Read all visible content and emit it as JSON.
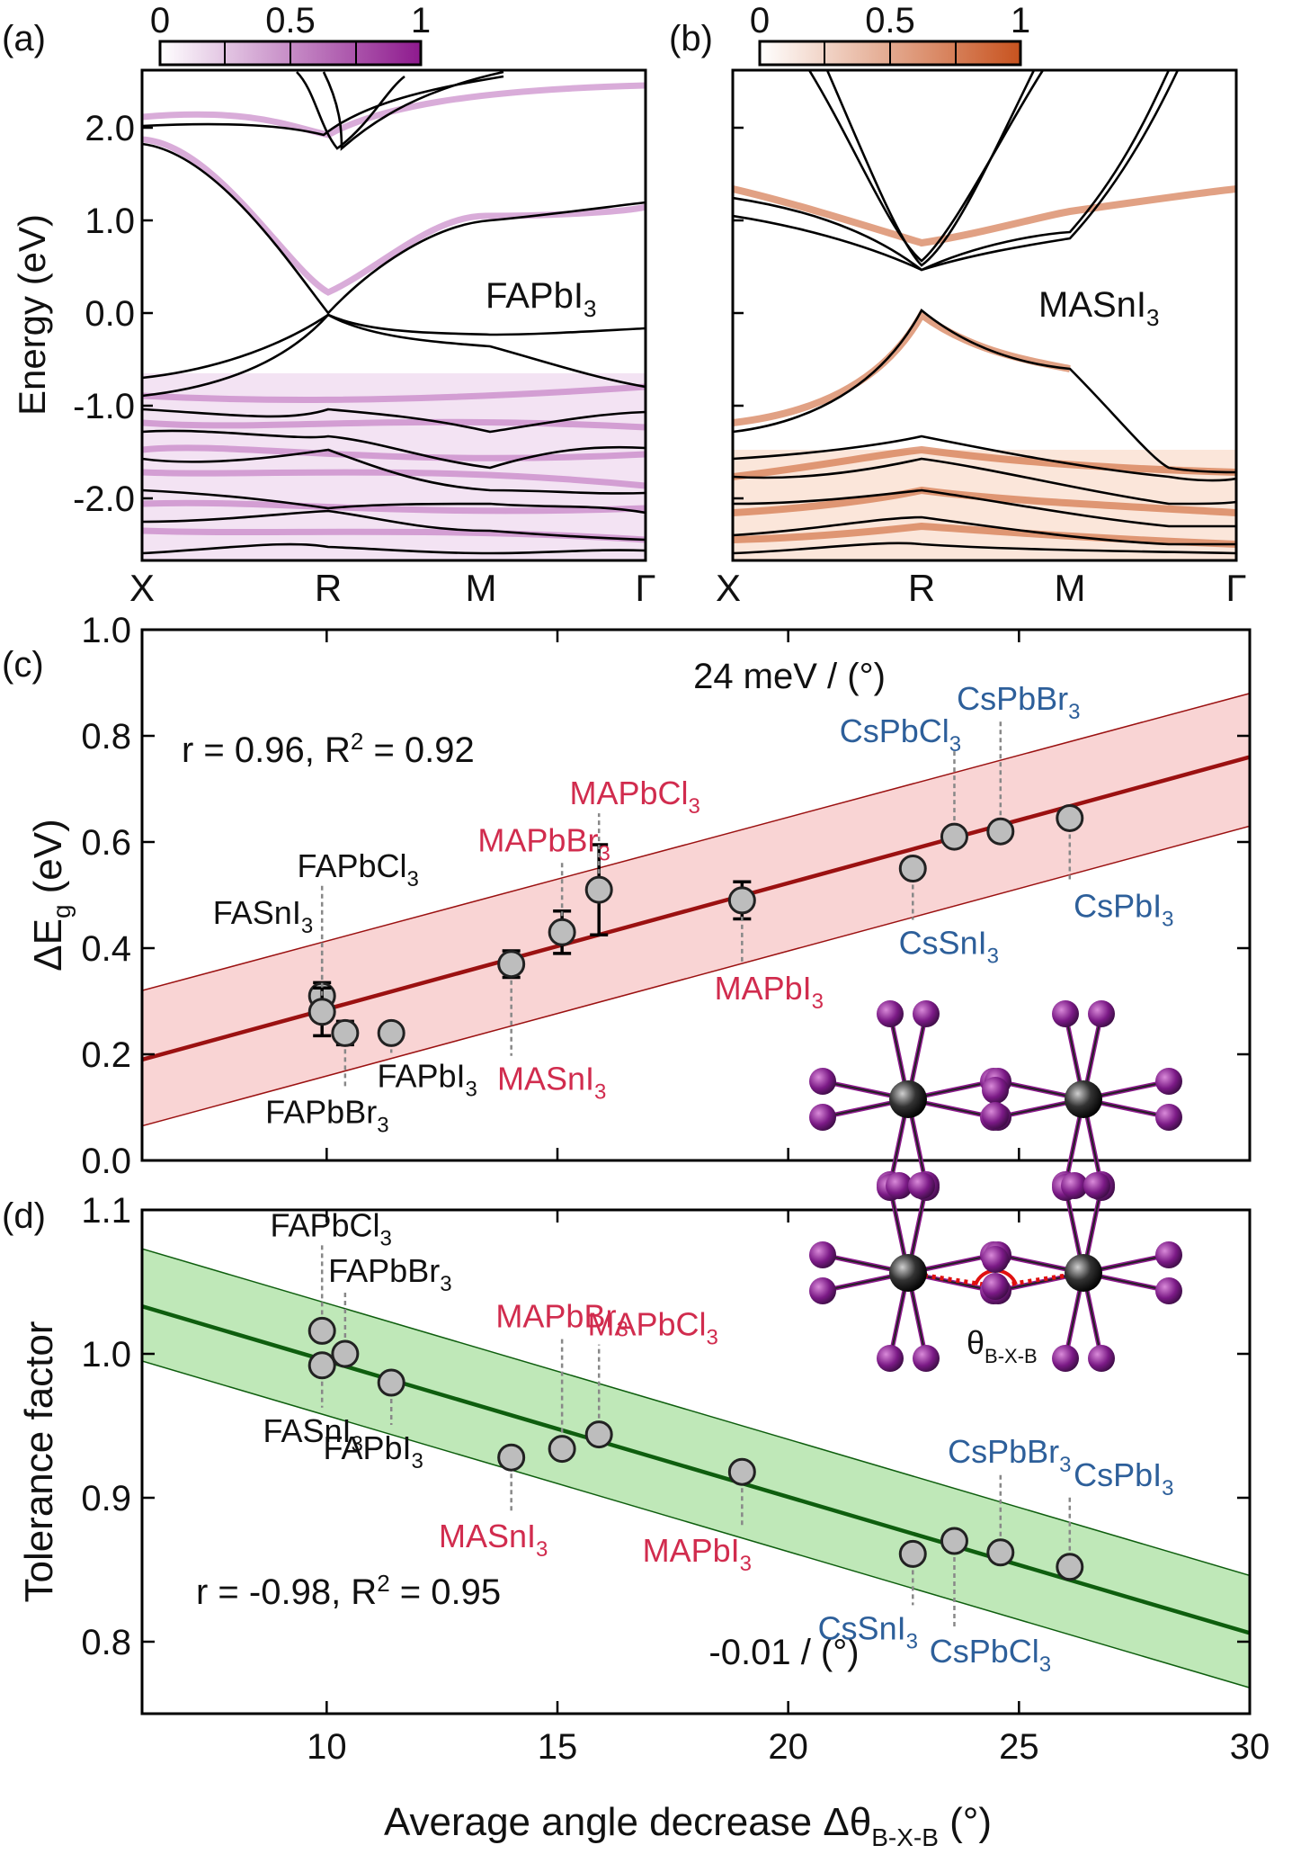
{
  "colors": {
    "purple": "#8e1a8e",
    "purple_light": "#f3e3f3",
    "orange": "#c8531f",
    "orange_light": "#fbe6da",
    "red_line": "#9b1111",
    "red_band": "#f9d4d4",
    "green_line": "#0e5e0e",
    "green_band": "#bfe8b8",
    "black_label": "#111111",
    "fa_label": "#111111",
    "ma_label": "#d12c4e",
    "cs_label": "#2d5f9a",
    "marker_fill": "#bdbdbd"
  },
  "panels": {
    "a": {
      "tag": "(a)",
      "colorbar_ticks": [
        "0",
        "0.5",
        "1"
      ],
      "material": "FAPbI",
      "material_sub": "3",
      "ylabel": "Energy (eV)",
      "yticks": [
        "2.0",
        "1.0",
        "0.0",
        "-1.0",
        "-2.0"
      ],
      "kpoints": [
        "X",
        "R",
        "M",
        "Γ"
      ]
    },
    "b": {
      "tag": "(b)",
      "colorbar_ticks": [
        "0",
        "0.5",
        "1"
      ],
      "material": "MASnI",
      "material_sub": "3",
      "kpoints": [
        "X",
        "R",
        "M",
        "Γ"
      ]
    },
    "inset": {
      "angle_symbol": "θ",
      "angle_sub": "B-X-B"
    }
  },
  "chart_data": [
    {
      "panel": "(c)",
      "type": "scatter",
      "ylabel_main": "ΔE",
      "ylabel_sub": "g",
      "ylabel_unit": "(eV)",
      "ylim": [
        0.0,
        1.0
      ],
      "xlim": [
        6,
        30
      ],
      "yticks": [
        "0.0",
        "0.2",
        "0.4",
        "0.6",
        "0.8",
        "1.0"
      ],
      "slope_label": "24 meV / (°)",
      "stats_label_a": "r = 0.96, R",
      "stats_label_sup": "2",
      "stats_label_b": " = 0.92",
      "fit_line": {
        "x": [
          6,
          30
        ],
        "y": [
          0.19,
          0.76
        ]
      },
      "band": {
        "upper": [
          0.32,
          0.88
        ],
        "lower": [
          0.065,
          0.63
        ]
      },
      "points": [
        {
          "name": "FASnI",
          "sub": "3",
          "group": "fa",
          "x": 9.9,
          "y": 0.31,
          "err": 0.025
        },
        {
          "name": "FAPbCl",
          "sub": "3",
          "group": "fa",
          "x": 9.9,
          "y": 0.28,
          "err": 0.045
        },
        {
          "name": "FAPbBr",
          "sub": "3",
          "group": "fa",
          "x": 10.4,
          "y": 0.24,
          "err": 0.022
        },
        {
          "name": "FAPbI",
          "sub": "3",
          "group": "fa",
          "x": 11.4,
          "y": 0.24,
          "err": 0.015
        },
        {
          "name": "MASnI",
          "sub": "3",
          "group": "ma",
          "x": 14.0,
          "y": 0.37,
          "err": 0.025
        },
        {
          "name": "MAPbBr",
          "sub": "3",
          "group": "ma",
          "x": 15.1,
          "y": 0.43,
          "err": 0.04
        },
        {
          "name": "MAPbCl",
          "sub": "3",
          "group": "ma",
          "x": 15.9,
          "y": 0.51,
          "err": 0.085
        },
        {
          "name": "MAPbI",
          "sub": "3",
          "group": "ma",
          "x": 19.0,
          "y": 0.49,
          "err": 0.035
        },
        {
          "name": "CsSnI",
          "sub": "3",
          "group": "cs",
          "x": 22.7,
          "y": 0.55,
          "err": 0.008
        },
        {
          "name": "CsPbCl",
          "sub": "3",
          "group": "cs",
          "x": 23.6,
          "y": 0.61,
          "err": 0.015
        },
        {
          "name": "CsPbBr",
          "sub": "3",
          "group": "cs",
          "x": 24.6,
          "y": 0.62,
          "err": 0.008
        },
        {
          "name": "CsPbI",
          "sub": "3",
          "group": "cs",
          "x": 26.1,
          "y": 0.645,
          "err": 0.015
        }
      ]
    },
    {
      "panel": "(d)",
      "type": "scatter",
      "ylabel": "Tolerance factor",
      "xlabel_main": "Average angle decrease Δθ",
      "xlabel_sub": "B-X-B",
      "xlabel_unit": " (°)",
      "ylim": [
        0.75,
        1.1
      ],
      "xlim": [
        6,
        30
      ],
      "yticks": [
        "0.8",
        "0.9",
        "1.0",
        "1.1"
      ],
      "xticks": [
        "10",
        "15",
        "20",
        "25",
        "30"
      ],
      "slope_label": "-0.01 / (°)",
      "stats_label_a": "r = -0.98, R",
      "stats_label_sup": "2",
      "stats_label_b": " = 0.95",
      "fit_line": {
        "x": [
          6,
          30
        ],
        "y": [
          1.033,
          0.806
        ]
      },
      "band": {
        "upper": [
          1.073,
          0.846
        ],
        "lower": [
          0.995,
          0.768
        ]
      },
      "points": [
        {
          "name": "FAPbCl",
          "sub": "3",
          "group": "fa",
          "x": 9.9,
          "y": 1.016
        },
        {
          "name": "FASnI",
          "sub": "3",
          "group": "fa",
          "x": 9.9,
          "y": 0.992
        },
        {
          "name": "FAPbBr",
          "sub": "3",
          "group": "fa",
          "x": 10.4,
          "y": 1.0
        },
        {
          "name": "FAPbI",
          "sub": "3",
          "group": "fa",
          "x": 11.4,
          "y": 0.98
        },
        {
          "name": "MASnI",
          "sub": "3",
          "group": "ma",
          "x": 14.0,
          "y": 0.928
        },
        {
          "name": "MAPbBr",
          "sub": "3",
          "group": "ma",
          "x": 15.1,
          "y": 0.934
        },
        {
          "name": "MAPbCl",
          "sub": "3",
          "group": "ma",
          "x": 15.9,
          "y": 0.944
        },
        {
          "name": "MAPbI",
          "sub": "3",
          "group": "ma",
          "x": 19.0,
          "y": 0.918
        },
        {
          "name": "CsSnI",
          "sub": "3",
          "group": "cs",
          "x": 22.7,
          "y": 0.861
        },
        {
          "name": "CsPbCl",
          "sub": "3",
          "group": "cs",
          "x": 23.6,
          "y": 0.87
        },
        {
          "name": "CsPbBr",
          "sub": "3",
          "group": "cs",
          "x": 24.6,
          "y": 0.862
        },
        {
          "name": "CsPbI",
          "sub": "3",
          "group": "cs",
          "x": 26.1,
          "y": 0.852
        }
      ]
    }
  ]
}
